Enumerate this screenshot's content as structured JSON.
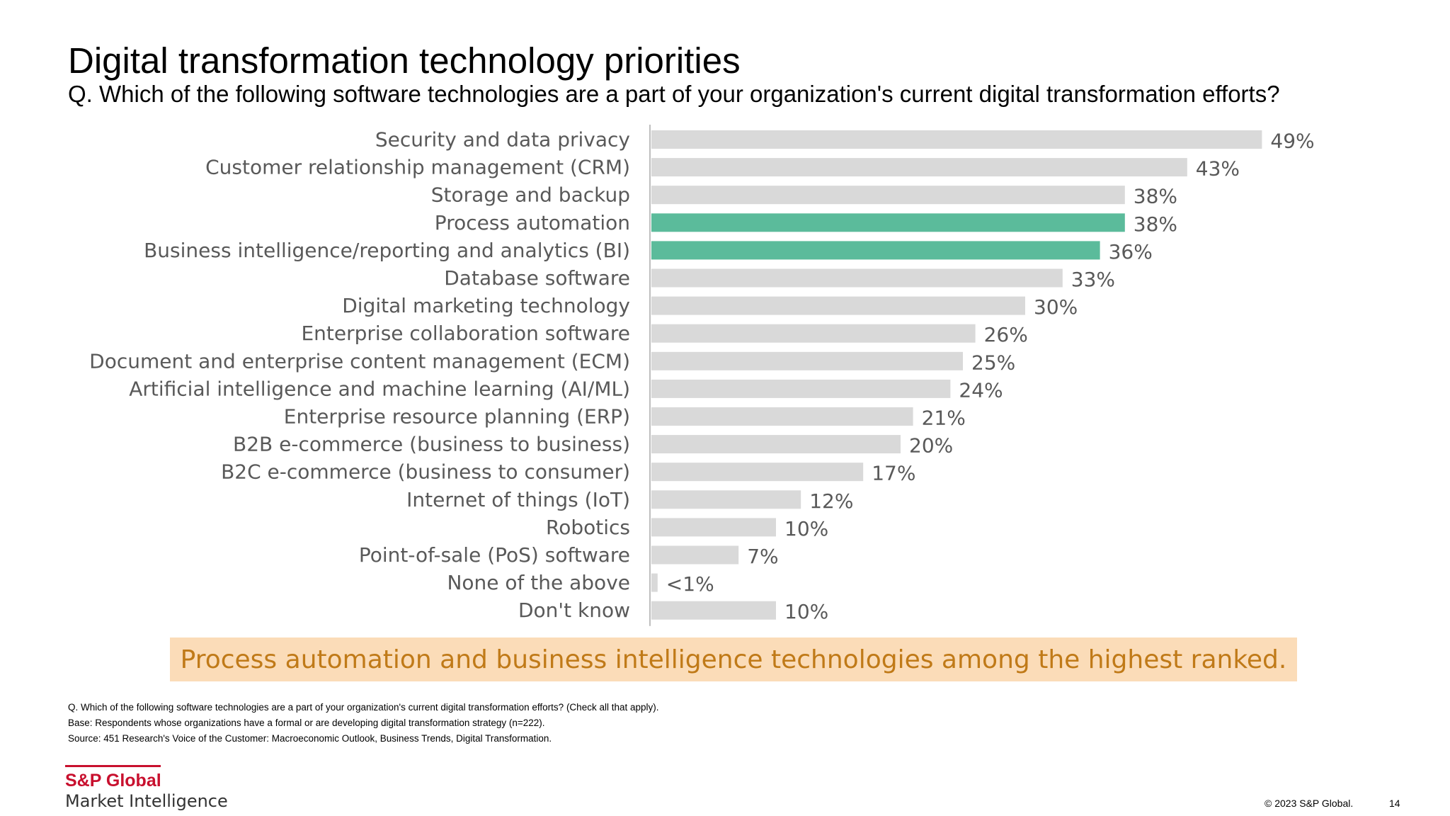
{
  "title": "Digital transformation technology priorities",
  "subtitle": "Q. Which of the following software technologies are a part of your organization's current digital transformation efforts?",
  "chart_data": {
    "type": "bar",
    "orientation": "horizontal",
    "categories": [
      "Security and data privacy",
      "Customer relationship management (CRM)",
      "Storage and backup",
      "Process automation",
      "Business intelligence/reporting and analytics (BI)",
      "Database software",
      "Digital marketing technology",
      "Enterprise collaboration software",
      "Document and enterprise content management (ECM)",
      "Artificial intelligence and machine learning (AI/ML)",
      "Enterprise resource planning (ERP)",
      "B2B e-commerce (business to business)",
      "B2C e-commerce (business to consumer)",
      "Internet of things (IoT)",
      "Robotics",
      "Point-of-sale (PoS) software",
      "None of the above",
      "Don't know"
    ],
    "values": [
      49,
      43,
      38,
      38,
      36,
      33,
      30,
      26,
      25,
      24,
      21,
      20,
      17,
      12,
      10,
      7,
      0.5,
      10
    ],
    "value_labels": [
      "49%",
      "43%",
      "38%",
      "38%",
      "36%",
      "33%",
      "30%",
      "26%",
      "25%",
      "24%",
      "21%",
      "20%",
      "17%",
      "12%",
      "10%",
      "7%",
      "<1%",
      "10%"
    ],
    "highlighted": [
      false,
      false,
      false,
      true,
      true,
      false,
      false,
      false,
      false,
      false,
      false,
      false,
      false,
      false,
      false,
      false,
      false,
      false
    ],
    "xlim": [
      0,
      50
    ],
    "grid": false,
    "legend": "none",
    "colors": {
      "default": "#d9d9d9",
      "highlight": "#5bbb9b",
      "axis": "#bfbfbf"
    }
  },
  "callout": "Process automation and business intelligence technologies among the highest ranked.",
  "footnotes": [
    "Q. Which of the following software technologies are a part of your organization's current digital transformation efforts? (Check all that apply).",
    "Base: Respondents whose organizations have a formal or are developing digital transformation strategy (n=222).",
    "Source: 451 Research's Voice of the Customer: Macroeconomic Outlook, Business Trends, Digital Transformation."
  ],
  "logo": {
    "top": "S&P Global",
    "bottom": "Market Intelligence"
  },
  "copyright": "© 2023 S&P Global.",
  "page_number": "14"
}
